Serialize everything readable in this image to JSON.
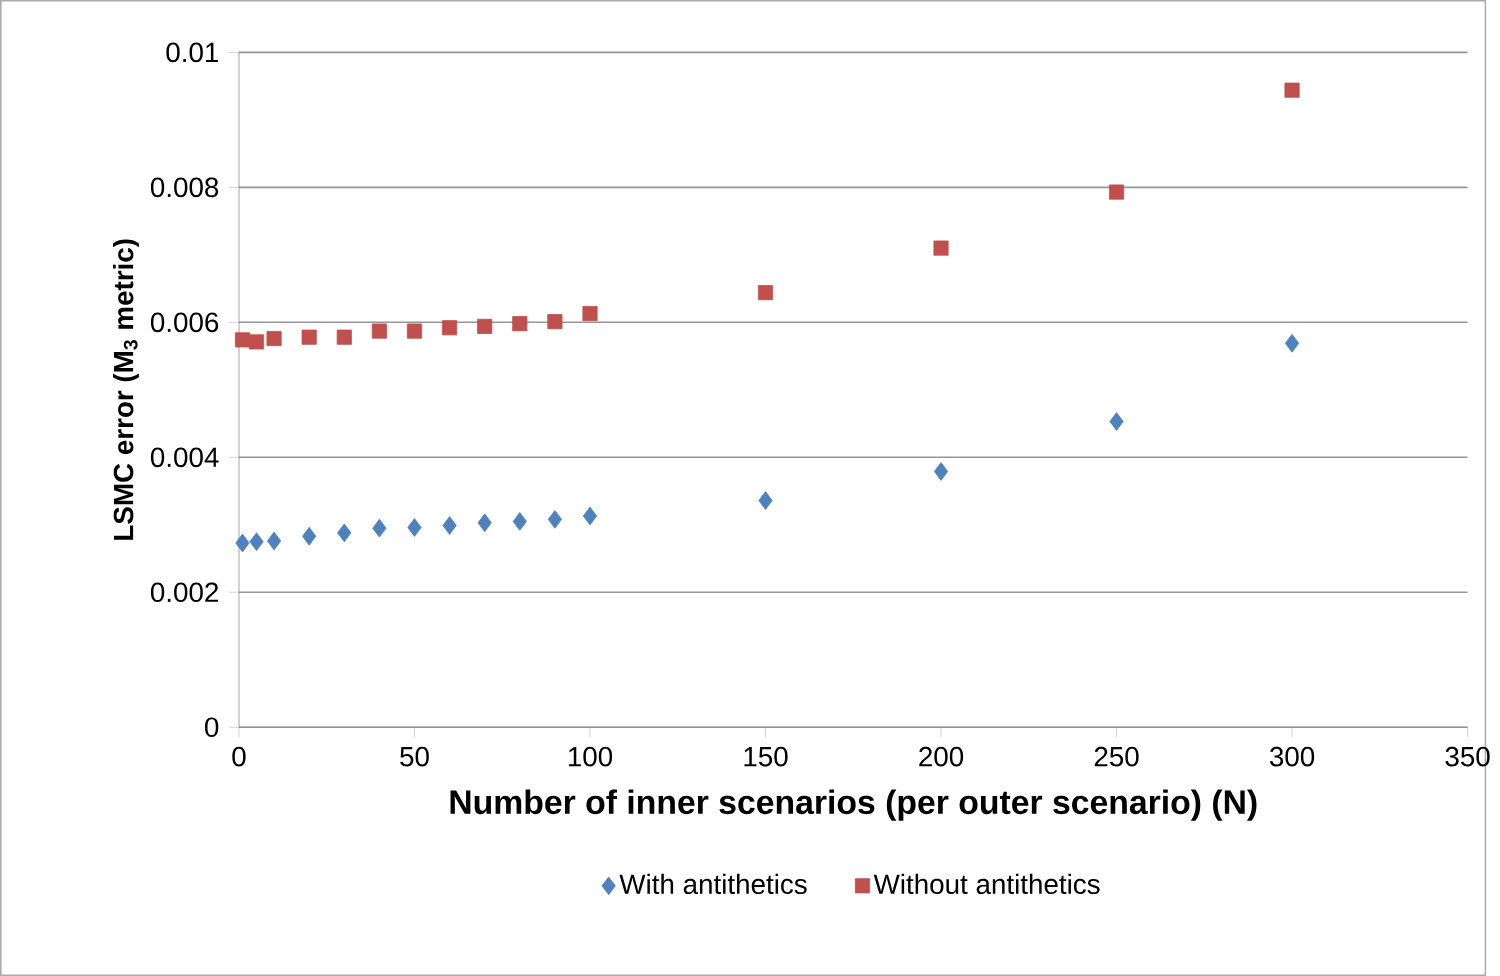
{
  "chart_data": {
    "type": "scatter",
    "xlabel": "Number of inner scenarios (per outer scenario)   (N)",
    "ylabel": "LSMC error (M$_{3}$ metric)",
    "x": [
      1,
      5,
      10,
      20,
      30,
      40,
      50,
      60,
      70,
      80,
      90,
      100,
      150,
      200,
      250,
      300
    ],
    "series": [
      {
        "name": "With antithetics",
        "color": "#4f81bd",
        "marker": "diamond",
        "values": [
          0.00273,
          0.00275,
          0.00276,
          0.00283,
          0.00288,
          0.00295,
          0.00296,
          0.00299,
          0.00303,
          0.00305,
          0.00308,
          0.00313,
          0.00336,
          0.00379,
          0.00453,
          0.00569
        ]
      },
      {
        "name": "Without antithetics",
        "color": "#c0504d",
        "marker": "square",
        "values": [
          0.00574,
          0.00571,
          0.00576,
          0.00578,
          0.00578,
          0.00587,
          0.00587,
          0.00592,
          0.00594,
          0.00598,
          0.00601,
          0.00613,
          0.00644,
          0.0071,
          0.00793,
          0.00944
        ]
      }
    ],
    "xlim": [
      0,
      350
    ],
    "ylim": [
      0,
      0.01
    ],
    "xticks": [
      0,
      50,
      100,
      150,
      200,
      250,
      300,
      350
    ],
    "yticks": [
      0,
      0.002,
      0.004,
      0.006,
      0.008,
      0.01
    ],
    "grid": "y",
    "legend": "bottom"
  }
}
